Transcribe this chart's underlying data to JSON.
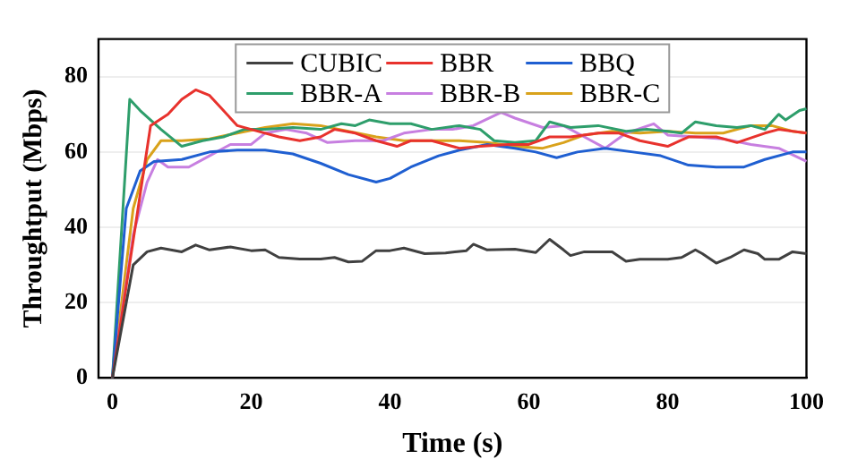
{
  "chart_data": {
    "type": "line",
    "xlabel": "Time (s)",
    "ylabel": "Throughtput (Mbps)",
    "xlim": [
      -2,
      100
    ],
    "xticks": [
      0,
      20,
      40,
      60,
      80,
      100
    ],
    "ylim": [
      0,
      90
    ],
    "yticks": [
      0,
      20,
      40,
      60,
      80
    ],
    "grid": "y",
    "legend": "top",
    "marker": "none",
    "line_style": "solid",
    "series": [
      {
        "name": "CUBIC",
        "color": "#404040",
        "x": [
          0,
          3,
          5,
          7,
          10,
          12,
          14,
          17,
          20,
          22,
          24,
          27,
          30,
          32,
          34,
          36,
          38,
          40,
          42,
          45,
          48,
          51,
          52,
          54,
          58,
          61,
          63,
          65,
          66,
          68,
          72,
          74,
          76,
          80,
          82,
          84,
          85,
          87,
          89,
          91,
          93,
          94,
          96,
          98,
          100
        ],
        "values": [
          0,
          30,
          33.5,
          34.5,
          33.5,
          35.3,
          34,
          34.8,
          33.8,
          34,
          32,
          31.6,
          31.6,
          32,
          30.8,
          31,
          33.8,
          33.8,
          34.5,
          33,
          33.2,
          33.8,
          35.5,
          34,
          34.2,
          33.3,
          36.8,
          34,
          32.5,
          33.5,
          33.5,
          31,
          31.5,
          31.5,
          32,
          34,
          33,
          30.5,
          32,
          34,
          33,
          31.5,
          31.5,
          33.5,
          33
        ]
      },
      {
        "name": "BBR",
        "color": "#e8322d",
        "x": [
          0,
          5.5,
          8,
          10,
          12,
          14,
          16,
          18,
          20,
          24,
          27,
          30,
          32,
          35,
          38,
          41,
          43,
          46,
          50,
          53,
          57,
          60,
          63,
          66,
          70,
          73,
          76,
          80,
          83,
          87,
          90,
          94,
          96,
          100
        ],
        "values": [
          0,
          67,
          70,
          74,
          76.5,
          75,
          71,
          67,
          66,
          64,
          63,
          64,
          66,
          65,
          63,
          61.5,
          63,
          63,
          61,
          61.5,
          62,
          62,
          64,
          64,
          65,
          65,
          63,
          61.5,
          64,
          64,
          62.5,
          65,
          66,
          65
        ]
      },
      {
        "name": "BBQ",
        "color": "#1f5fd1",
        "x": [
          0,
          2,
          4,
          6,
          10,
          14,
          18,
          22,
          26,
          30,
          34,
          38,
          40,
          43,
          47,
          50,
          54,
          58,
          61,
          64,
          67,
          71,
          75,
          79,
          83,
          87,
          91,
          94,
          98,
          100
        ],
        "values": [
          0,
          45,
          55,
          57.5,
          58,
          60,
          60.5,
          60.5,
          59.5,
          57,
          54,
          52,
          53,
          56,
          59,
          60.5,
          62,
          61,
          60,
          58.5,
          60,
          61,
          60,
          59,
          56.5,
          56,
          56,
          58,
          60,
          60
        ]
      },
      {
        "name": "BBR-A",
        "color": "#2e9e6b",
        "x": [
          0,
          2.5,
          4,
          7,
          10,
          13,
          16,
          19,
          22,
          26,
          30,
          33,
          35,
          37,
          40,
          43,
          46,
          50,
          53,
          55,
          58,
          61,
          63,
          66,
          70,
          74,
          77,
          80,
          82,
          84,
          87,
          90,
          92,
          94,
          96,
          97,
          99,
          100
        ],
        "values": [
          0,
          74,
          71,
          66,
          61.5,
          63,
          64,
          66,
          66,
          66.5,
          66,
          67.5,
          67,
          68.5,
          67.5,
          67.5,
          66,
          67,
          66,
          63,
          62.5,
          63,
          68,
          66.5,
          67,
          65.5,
          66,
          65.5,
          65,
          68,
          67,
          66.5,
          67,
          66,
          70,
          68.5,
          71,
          71.5
        ]
      },
      {
        "name": "BBR-B",
        "color": "#c77fe0",
        "x": [
          0,
          3,
          5,
          6.5,
          8,
          11,
          14,
          17,
          20,
          22,
          25,
          28,
          31,
          35,
          39,
          42,
          46,
          49,
          52,
          56,
          58,
          62,
          65,
          68,
          71,
          74,
          78,
          80,
          84,
          88,
          92,
          96,
          100
        ],
        "values": [
          0,
          38,
          52,
          58,
          56,
          56,
          59,
          62,
          62,
          65,
          66,
          65,
          62.5,
          63,
          63,
          65,
          66,
          66,
          67,
          70.5,
          69,
          66.5,
          67,
          64,
          61,
          65,
          67.5,
          64.5,
          64,
          63.5,
          62,
          61,
          57.5
        ]
      },
      {
        "name": "BBR-C",
        "color": "#d9a21b",
        "x": [
          0,
          3,
          5,
          7,
          10,
          14,
          18,
          22,
          26,
          30,
          34,
          38,
          42,
          46,
          50,
          54,
          58,
          62,
          65,
          68,
          72,
          76,
          80,
          84,
          88,
          92,
          95,
          98,
          100
        ],
        "values": [
          0,
          45,
          58,
          63,
          63,
          63.5,
          65,
          66.5,
          67.5,
          67,
          65.5,
          64,
          63,
          63,
          63,
          62.5,
          61.5,
          61,
          62.5,
          64.5,
          65.5,
          65,
          65.5,
          65,
          65,
          67,
          67,
          65.5,
          65
        ]
      }
    ]
  }
}
